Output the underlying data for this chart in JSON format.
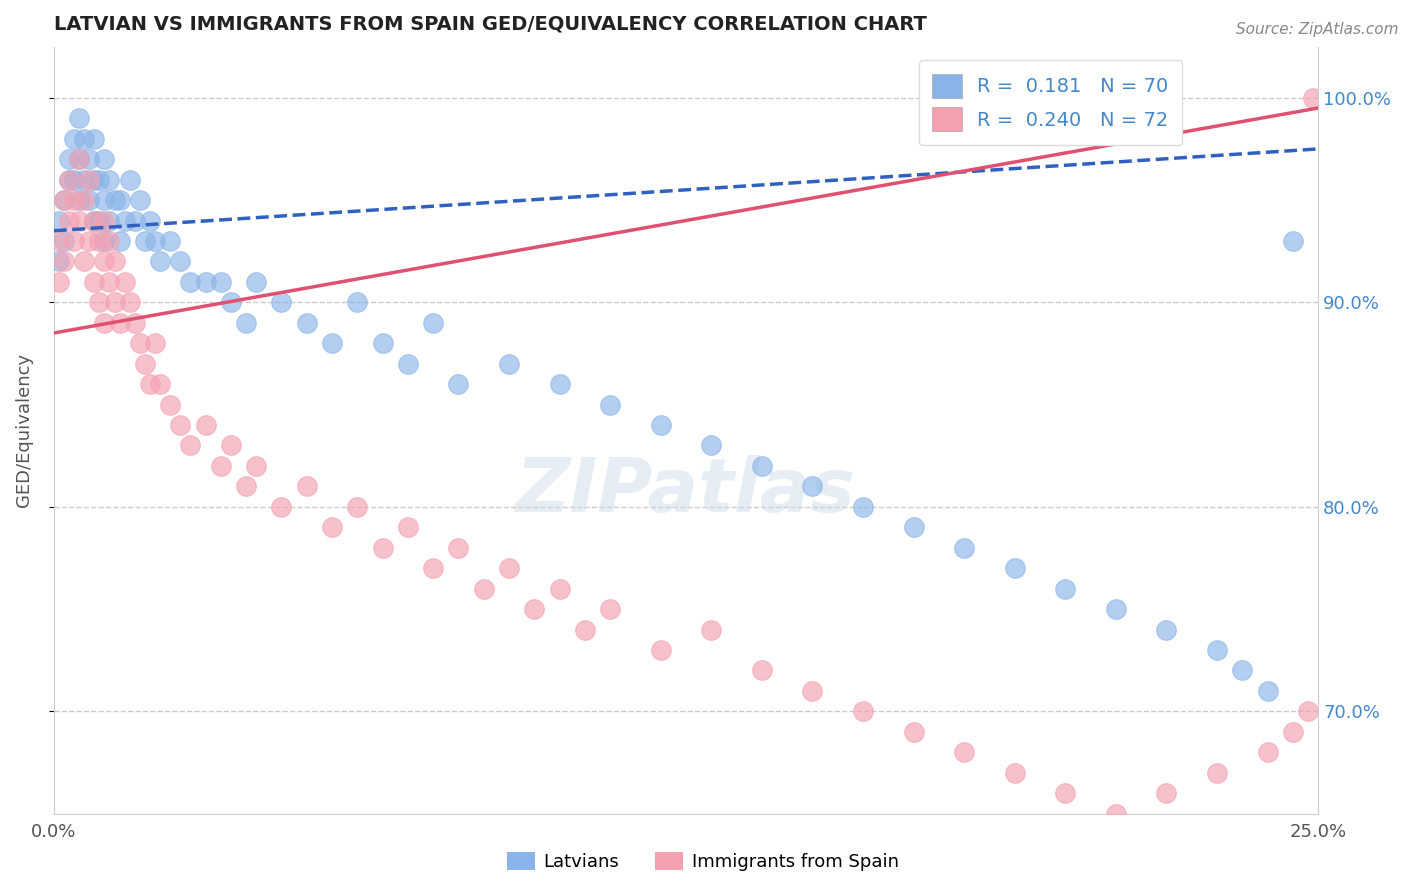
{
  "title": "LATVIAN VS IMMIGRANTS FROM SPAIN GED/EQUIVALENCY CORRELATION CHART",
  "source": "Source: ZipAtlas.com",
  "ylabel": "GED/Equivalency",
  "xmin": 0.0,
  "xmax": 25.0,
  "ymin": 65.0,
  "ymax": 102.5,
  "yticks": [
    70.0,
    80.0,
    90.0,
    100.0
  ],
  "xticks": [
    0.0,
    25.0
  ],
  "legend_x": "Latvians",
  "legend_y": "Immigrants from Spain",
  "R_latvian": 0.181,
  "N_latvian": 70,
  "R_spain": 0.24,
  "N_spain": 72,
  "color_latvian": "#8ab4e8",
  "color_spain": "#f4a0b0",
  "trend_color_latvian": "#3060c0",
  "trend_color_spain": "#e05070",
  "latvian_x": [
    0.1,
    0.1,
    0.2,
    0.2,
    0.3,
    0.3,
    0.4,
    0.4,
    0.5,
    0.5,
    0.5,
    0.6,
    0.6,
    0.7,
    0.7,
    0.8,
    0.8,
    0.8,
    0.9,
    0.9,
    1.0,
    1.0,
    1.0,
    1.1,
    1.1,
    1.2,
    1.3,
    1.3,
    1.4,
    1.5,
    1.6,
    1.7,
    1.8,
    1.9,
    2.0,
    2.1,
    2.3,
    2.5,
    2.7,
    3.0,
    3.3,
    3.5,
    3.8,
    4.0,
    4.5,
    5.0,
    5.5,
    6.0,
    6.5,
    7.0,
    7.5,
    8.0,
    9.0,
    10.0,
    11.0,
    12.0,
    13.0,
    14.0,
    15.0,
    16.0,
    17.0,
    18.0,
    19.0,
    20.0,
    21.0,
    22.0,
    23.0,
    23.5,
    24.0,
    24.5
  ],
  "latvian_y": [
    94,
    92,
    95,
    93,
    97,
    96,
    98,
    96,
    97,
    95,
    99,
    96,
    98,
    95,
    97,
    94,
    96,
    98,
    94,
    96,
    93,
    95,
    97,
    94,
    96,
    95,
    93,
    95,
    94,
    96,
    94,
    95,
    93,
    94,
    93,
    92,
    93,
    92,
    91,
    91,
    91,
    90,
    89,
    91,
    90,
    89,
    88,
    90,
    88,
    87,
    89,
    86,
    87,
    86,
    85,
    84,
    83,
    82,
    81,
    80,
    79,
    78,
    77,
    76,
    75,
    74,
    73,
    72,
    71,
    93
  ],
  "spain_x": [
    0.1,
    0.1,
    0.2,
    0.2,
    0.3,
    0.3,
    0.4,
    0.4,
    0.5,
    0.5,
    0.6,
    0.6,
    0.7,
    0.7,
    0.8,
    0.8,
    0.9,
    0.9,
    1.0,
    1.0,
    1.0,
    1.1,
    1.1,
    1.2,
    1.2,
    1.3,
    1.4,
    1.5,
    1.6,
    1.7,
    1.8,
    1.9,
    2.0,
    2.1,
    2.3,
    2.5,
    2.7,
    3.0,
    3.3,
    3.5,
    3.8,
    4.0,
    4.5,
    5.0,
    5.5,
    6.0,
    6.5,
    7.0,
    7.5,
    8.0,
    8.5,
    9.0,
    9.5,
    10.0,
    10.5,
    11.0,
    12.0,
    13.0,
    14.0,
    15.0,
    16.0,
    17.0,
    18.0,
    19.0,
    20.0,
    21.0,
    22.0,
    23.0,
    24.0,
    24.5,
    24.8,
    24.9
  ],
  "spain_y": [
    93,
    91,
    95,
    92,
    96,
    94,
    95,
    93,
    97,
    94,
    95,
    92,
    96,
    93,
    94,
    91,
    93,
    90,
    92,
    94,
    89,
    91,
    93,
    90,
    92,
    89,
    91,
    90,
    89,
    88,
    87,
    86,
    88,
    86,
    85,
    84,
    83,
    84,
    82,
    83,
    81,
    82,
    80,
    81,
    79,
    80,
    78,
    79,
    77,
    78,
    76,
    77,
    75,
    76,
    74,
    75,
    73,
    74,
    72,
    71,
    70,
    69,
    68,
    67,
    66,
    65,
    66,
    67,
    68,
    69,
    70,
    100
  ]
}
